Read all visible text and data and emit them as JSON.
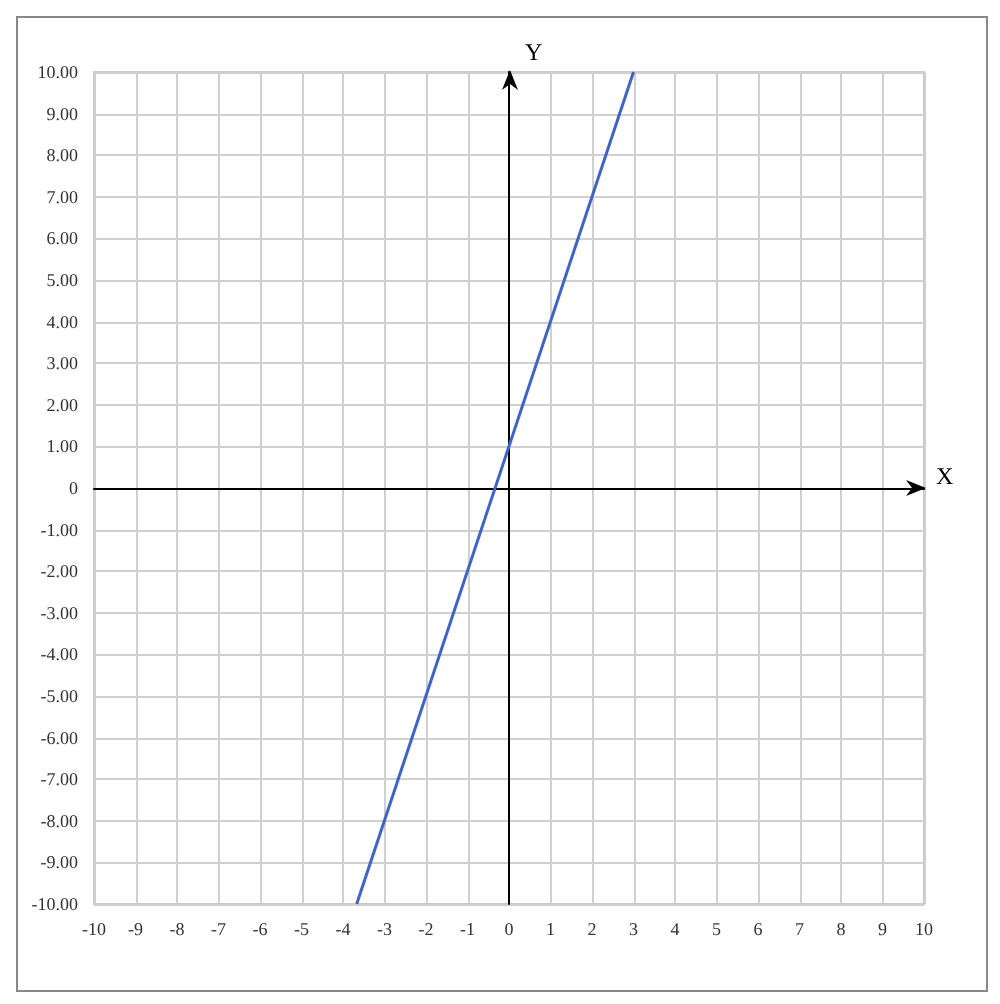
{
  "chart_data": {
    "type": "line",
    "xlabel": "X",
    "ylabel": "Y",
    "x": [
      -3.67,
      3
    ],
    "series": [
      {
        "color": "#4063c8",
        "values": [
          -10,
          10
        ]
      }
    ],
    "xlim": [
      -10,
      10
    ],
    "xticks": [
      -10,
      -9,
      -8,
      -7,
      -6,
      -5,
      -4,
      -3,
      -2,
      -1,
      0,
      1,
      2,
      3,
      4,
      5,
      6,
      7,
      8,
      9,
      10
    ],
    "ylim": [
      -10,
      10
    ],
    "yticks": [
      {
        "value": -10,
        "label": "-10.00"
      },
      {
        "value": -9,
        "label": "-9.00"
      },
      {
        "value": -8,
        "label": "-8.00"
      },
      {
        "value": -7,
        "label": "-7.00"
      },
      {
        "value": -6,
        "label": "-6.00"
      },
      {
        "value": -5,
        "label": "-5.00"
      },
      {
        "value": -4,
        "label": "-4.00"
      },
      {
        "value": -3,
        "label": "-3.00"
      },
      {
        "value": -2,
        "label": "-2.00"
      },
      {
        "value": -1,
        "label": "-1.00"
      },
      0,
      {
        "value": 1,
        "label": "1.00"
      },
      {
        "value": 2,
        "label": "2.00"
      },
      {
        "value": 3,
        "label": "3.00"
      },
      {
        "value": 4,
        "label": "4.00"
      },
      {
        "value": 5,
        "label": "5.00"
      },
      {
        "value": 6,
        "label": "6.00"
      },
      {
        "value": 7,
        "label": "7.00"
      },
      {
        "value": 8,
        "label": "8.00"
      },
      {
        "value": 9,
        "label": "9.00"
      },
      {
        "value": 10,
        "label": "10.00"
      }
    ],
    "grid": true,
    "marker": "none",
    "line_style": "solid"
  }
}
